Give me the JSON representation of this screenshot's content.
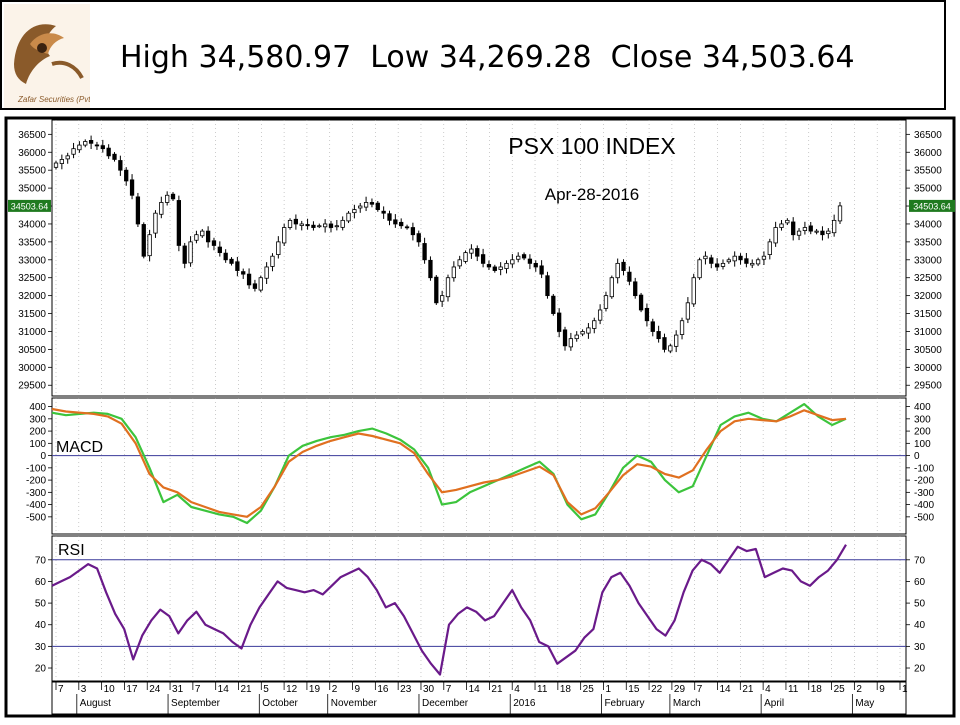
{
  "header": {
    "headline": "High 34,580.97  Low 34,269.28  Close 34,503.64",
    "logo_text": "Zafar Securities (Pvt.) Ltd."
  },
  "colors": {
    "candle": "#000000",
    "macd_line": "#3cc43c",
    "signal_line": "#e07020",
    "rsi_line": "#6a1a8a",
    "ref_line": "#3a3a9a",
    "close_badge": "#1f7a1f"
  },
  "chart_data": [
    {
      "type": "candlestick",
      "title": "PSX 100 INDEX",
      "subtitle": "Apr-28-2016",
      "ylim": [
        29200,
        36900
      ],
      "yticks": [
        29500,
        30000,
        30500,
        31000,
        31500,
        32000,
        32500,
        33000,
        33500,
        34000,
        34500,
        35000,
        35500,
        36000,
        36500
      ],
      "last_close_label": "34503.64",
      "last_close": 34503.64,
      "close_series": [
        35700,
        35800,
        35900,
        36100,
        36200,
        36300,
        36250,
        36200,
        36100,
        35900,
        35800,
        35500,
        35200,
        34800,
        34000,
        33100,
        33700,
        34300,
        34600,
        34800,
        34700,
        33400,
        32900,
        33500,
        33700,
        33800,
        33500,
        33400,
        33200,
        33000,
        32900,
        32700,
        32600,
        32300,
        32200,
        32500,
        32800,
        33100,
        33500,
        33900,
        34100,
        34000,
        34000,
        33950,
        33900,
        33950,
        34000,
        33900,
        33950,
        34100,
        34300,
        34400,
        34500,
        34600,
        34550,
        34400,
        34300,
        34100,
        34000,
        33950,
        33900,
        33700,
        33500,
        33000,
        32500,
        31800,
        32000,
        32500,
        32800,
        33000,
        33200,
        33300,
        33100,
        32900,
        32800,
        32700,
        32800,
        32900,
        33000,
        33100,
        33050,
        32900,
        32800,
        32600,
        32000,
        31500,
        31000,
        30600,
        30800,
        30900,
        31000,
        31100,
        31300,
        31600,
        32000,
        32500,
        32900,
        32700,
        32400,
        32000,
        31600,
        31300,
        31000,
        30800,
        30500,
        30600,
        30900,
        31300,
        31800,
        32500,
        33000,
        33100,
        32900,
        32800,
        32900,
        33000,
        33100,
        33000,
        32900,
        32900,
        33000,
        33100,
        33500,
        33900,
        34000,
        34100,
        33700,
        33800,
        33900,
        33800,
        33800,
        33700,
        33800,
        34100,
        34503.64
      ],
      "x_tick_labels": [
        "7",
        "3",
        "10",
        "17",
        "24",
        "31",
        "7",
        "14",
        "21",
        "5",
        "12",
        "19",
        "2",
        "9",
        "16",
        "23",
        "30",
        "7",
        "14",
        "21",
        "4",
        "11",
        "18",
        "25",
        "1",
        "15",
        "22",
        "29",
        "7",
        "14",
        "21",
        "4",
        "11",
        "18",
        "25",
        "2",
        "9",
        "1"
      ],
      "month_labels": [
        "August",
        "September",
        "October",
        "November",
        "December",
        "2016",
        "February",
        "March",
        "April",
        "May"
      ]
    },
    {
      "type": "line",
      "label": "MACD",
      "ylim": [
        -640,
        470
      ],
      "yticks": [
        -500,
        -400,
        -300,
        -200,
        -100,
        0,
        100,
        200,
        300,
        400
      ],
      "reference": [
        0
      ],
      "series": [
        {
          "key": "macd",
          "values": [
            350,
            330,
            340,
            350,
            340,
            300,
            150,
            -100,
            -380,
            -320,
            -420,
            -450,
            -480,
            -500,
            -550,
            -450,
            -250,
            0,
            80,
            120,
            150,
            170,
            200,
            220,
            180,
            130,
            50,
            -100,
            -400,
            -380,
            -300,
            -250,
            -200,
            -150,
            -100,
            -50,
            -150,
            -400,
            -520,
            -480,
            -300,
            -100,
            0,
            -50,
            -200,
            -300,
            -250,
            0,
            250,
            320,
            350,
            300,
            280,
            350,
            420,
            320,
            250,
            300
          ]
        },
        {
          "key": "signal",
          "values": [
            380,
            360,
            350,
            340,
            320,
            260,
            100,
            -150,
            -260,
            -300,
            -380,
            -420,
            -460,
            -480,
            -500,
            -420,
            -250,
            -50,
            30,
            80,
            120,
            150,
            180,
            160,
            130,
            100,
            20,
            -150,
            -300,
            -280,
            -250,
            -220,
            -200,
            -170,
            -130,
            -90,
            -160,
            -380,
            -480,
            -430,
            -300,
            -160,
            -70,
            -90,
            -150,
            -180,
            -120,
            50,
            200,
            280,
            300,
            290,
            280,
            320,
            370,
            330,
            290,
            300
          ]
        }
      ]
    },
    {
      "type": "line",
      "label": "RSI",
      "ylim": [
        14,
        81
      ],
      "yticks": [
        20,
        30,
        40,
        50,
        60,
        70
      ],
      "reference": [
        30,
        70
      ],
      "series": [
        {
          "key": "rsi",
          "values": [
            58,
            60,
            62,
            65,
            68,
            66,
            55,
            45,
            38,
            24,
            35,
            42,
            47,
            44,
            36,
            42,
            46,
            40,
            38,
            36,
            32,
            29,
            40,
            48,
            54,
            60,
            57,
            56,
            55,
            56,
            54,
            58,
            62,
            64,
            66,
            62,
            56,
            48,
            50,
            44,
            36,
            28,
            22,
            17,
            40,
            45,
            48,
            46,
            42,
            44,
            50,
            56,
            48,
            42,
            32,
            30,
            22,
            25,
            28,
            34,
            38,
            55,
            62,
            64,
            58,
            50,
            44,
            38,
            35,
            42,
            55,
            65,
            70,
            68,
            64,
            70,
            76,
            74,
            75,
            62,
            64,
            66,
            65,
            60,
            58,
            62,
            65,
            70,
            77
          ]
        }
      ]
    }
  ]
}
